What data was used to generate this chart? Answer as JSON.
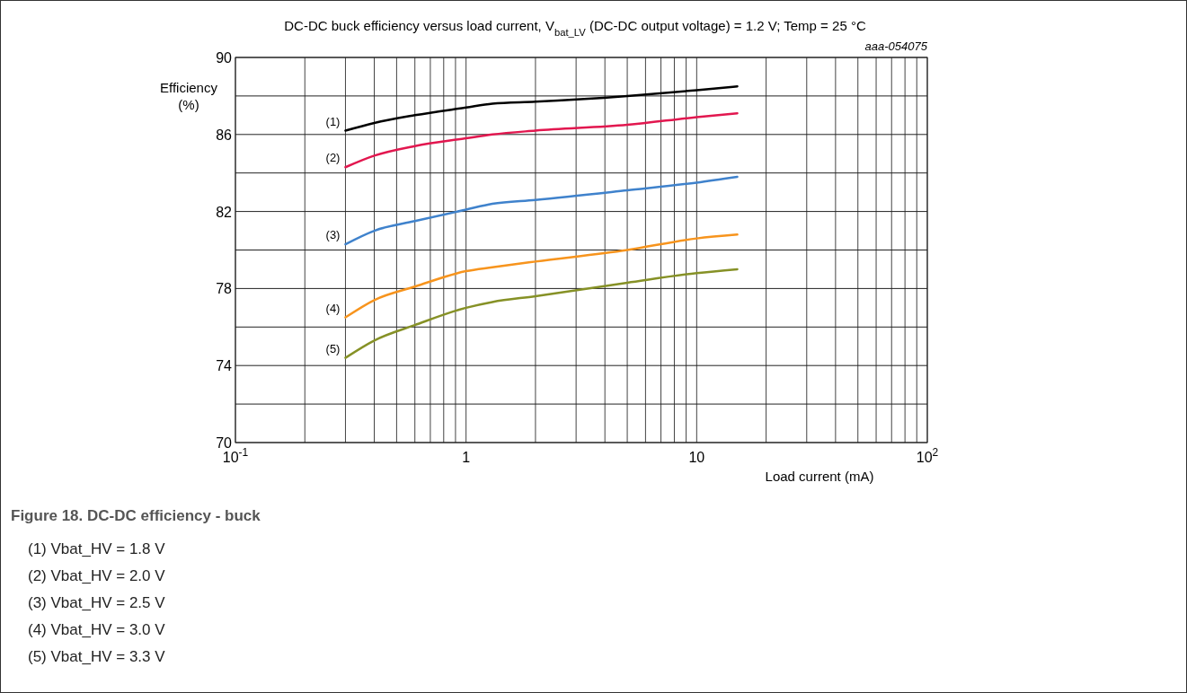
{
  "chart_data": {
    "type": "line",
    "title": "DC-DC buck efficiency versus load current, V$_{bat_LV}$ (DC-DC output voltage) = 1.2 V; Temp = 25 °C",
    "xlabel": "Load current (mA)",
    "ylabel": "Efficiency\n(%)",
    "log": "x",
    "grid": true,
    "legend": false,
    "line_style": "solid",
    "marker": "none",
    "xlim": [
      0.1,
      100
    ],
    "ylim": [
      70,
      90
    ],
    "xticks": [
      {
        "value": 0.1,
        "label": "10$^{-1}$"
      },
      {
        "value": 0.2,
        "label": null
      },
      {
        "value": 0.3,
        "label": null
      },
      {
        "value": 0.4,
        "label": null
      },
      {
        "value": 0.5,
        "label": null
      },
      {
        "value": 0.6,
        "label": null
      },
      {
        "value": 0.7,
        "label": null
      },
      {
        "value": 0.8,
        "label": null
      },
      {
        "value": 0.9,
        "label": null
      },
      1,
      {
        "value": 2,
        "label": null
      },
      {
        "value": 3,
        "label": null
      },
      {
        "value": 4,
        "label": null
      },
      {
        "value": 5,
        "label": null
      },
      {
        "value": 6,
        "label": null
      },
      {
        "value": 7,
        "label": null
      },
      {
        "value": 8,
        "label": null
      },
      {
        "value": 9,
        "label": null
      },
      10,
      {
        "value": 20,
        "label": null
      },
      {
        "value": 30,
        "label": null
      },
      {
        "value": 40,
        "label": null
      },
      {
        "value": 50,
        "label": null
      },
      {
        "value": 60,
        "label": null
      },
      {
        "value": 70,
        "label": null
      },
      {
        "value": 80,
        "label": null
      },
      {
        "value": 90,
        "label": null
      },
      {
        "value": 100,
        "label": "10$^{2}$"
      }
    ],
    "yticks": [
      70,
      {
        "value": 72,
        "label": null
      },
      74,
      {
        "value": 76,
        "label": null
      },
      78,
      {
        "value": 80,
        "label": null
      },
      82,
      {
        "value": 84,
        "label": null
      },
      86,
      {
        "value": 88,
        "label": null
      },
      90
    ],
    "x": [
      0.3,
      0.4,
      0.6,
      1,
      1.3,
      2,
      5,
      10,
      15
    ],
    "series": [
      {
        "name": "(1)",
        "color": "#000000",
        "values": [
          86.2,
          86.6,
          87.0,
          87.4,
          87.6,
          87.7,
          88.0,
          88.3,
          88.5
        ]
      },
      {
        "name": "(2)",
        "color": "#e2174f",
        "values": [
          84.3,
          84.9,
          85.4,
          85.8,
          86.0,
          86.2,
          86.5,
          86.9,
          87.1
        ]
      },
      {
        "name": "(3)",
        "color": "#3f82cc",
        "values": [
          80.3,
          81.0,
          81.5,
          82.1,
          82.4,
          82.6,
          83.1,
          83.5,
          83.8
        ]
      },
      {
        "name": "(4)",
        "color": "#f7941d",
        "values": [
          76.5,
          77.4,
          78.1,
          78.9,
          79.1,
          79.4,
          80.0,
          80.6,
          80.8
        ]
      },
      {
        "name": "(5)",
        "color": "#869126",
        "values": [
          74.4,
          75.3,
          76.1,
          77.0,
          77.3,
          77.6,
          78.3,
          78.8,
          79.0
        ]
      }
    ],
    "annotations": [
      "aaa-054075",
      "Figure 18.  DC-DC efficiency - buck",
      "(1) Vbat_HV = 1.8 V",
      "(2) Vbat_HV = 2.0 V",
      "(3) Vbat_HV = 2.5 V",
      "(4) Vbat_HV = 3.0 V",
      "(5) Vbat_HV = 3.3 V"
    ]
  }
}
